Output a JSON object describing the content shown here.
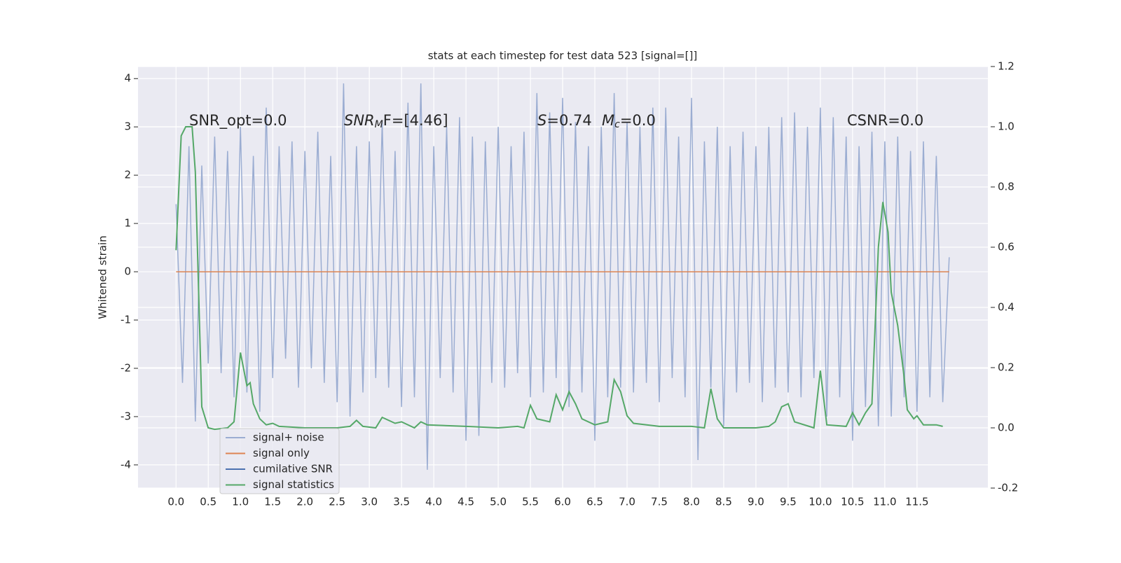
{
  "chart_data": {
    "type": "line",
    "title": "stats at each timestep for test data 523 [signal=[]]",
    "y_label": "Whitened strain",
    "annotations": [
      [
        "SNR_opt=0.0"
      ],
      [
        "SNR",
        "M",
        "F=[4.46]"
      ],
      [
        "S",
        "=0.74"
      ],
      [
        "M",
        "c",
        "=0.0"
      ],
      [
        "CSNR=0.0"
      ]
    ],
    "xlim": [
      -0.59,
      12.6
    ],
    "ylim": [
      -4.48,
      4.25
    ],
    "y2lim": [
      -0.2,
      1.2
    ],
    "xticks": [
      {
        "value": 0,
        "label": "0.0"
      },
      0.5,
      {
        "value": 1,
        "label": "1.0"
      },
      1.5,
      {
        "value": 2,
        "label": "2.0"
      },
      2.5,
      {
        "value": 3,
        "label": "3.0"
      },
      3.5,
      {
        "value": 4,
        "label": "4.0"
      },
      4.5,
      {
        "value": 5,
        "label": "5.0"
      },
      5.5,
      {
        "value": 6,
        "label": "6.0"
      },
      6.5,
      {
        "value": 7,
        "label": "7.0"
      },
      7.5,
      {
        "value": 8,
        "label": "8.0"
      },
      8.5,
      {
        "value": 9,
        "label": "9.0"
      },
      9.5,
      {
        "value": 10,
        "label": "10.0"
      },
      10.5,
      {
        "value": 11,
        "label": "11.0"
      },
      11.5
    ],
    "yticks": [
      -4,
      -3,
      -2,
      -1,
      0,
      1,
      2,
      3,
      4
    ],
    "y2ticks": [
      -0.2,
      {
        "value": 0,
        "label": "0.0"
      },
      0.2,
      0.4,
      0.6,
      0.8,
      {
        "value": 1,
        "label": "1.0"
      },
      1.2
    ],
    "grid": true,
    "legend": "lower left",
    "series": [
      {
        "name": "signal+ noise",
        "color": "#9badd2",
        "x": [
          0,
          0.1,
          0.2,
          0.3,
          0.4,
          0.5,
          0.6,
          0.7,
          0.8,
          0.9,
          1.0,
          1.1,
          1.2,
          1.3,
          1.4,
          1.5,
          1.6,
          1.7,
          1.8,
          1.9,
          2.0,
          2.1,
          2.2,
          2.3,
          2.4,
          2.5,
          2.6,
          2.7,
          2.8,
          2.9,
          3.0,
          3.1,
          3.2,
          3.3,
          3.4,
          3.5,
          3.6,
          3.7,
          3.8,
          3.9,
          4.0,
          4.1,
          4.2,
          4.3,
          4.4,
          4.5,
          4.6,
          4.7,
          4.8,
          4.9,
          5.0,
          5.1,
          5.2,
          5.3,
          5.4,
          5.5,
          5.6,
          5.7,
          5.8,
          5.9,
          6.0,
          6.1,
          6.2,
          6.3,
          6.4,
          6.5,
          6.6,
          6.7,
          6.8,
          6.9,
          7.0,
          7.1,
          7.2,
          7.3,
          7.4,
          7.5,
          7.6,
          7.7,
          7.8,
          7.9,
          8.0,
          8.1,
          8.2,
          8.3,
          8.4,
          8.5,
          8.6,
          8.7,
          8.8,
          8.9,
          9.0,
          9.1,
          9.2,
          9.3,
          9.4,
          9.5,
          9.6,
          9.7,
          9.8,
          9.9,
          10.0,
          10.1,
          10.2,
          10.3,
          10.4,
          10.5,
          10.6,
          10.7,
          10.8,
          10.9,
          11.0,
          11.1,
          11.2,
          11.3,
          11.4,
          11.5,
          11.6,
          11.7,
          11.8,
          11.9,
          12.0
        ],
        "values": [
          1.4,
          -2.3,
          2.6,
          -3.1,
          2.2,
          -1.9,
          2.8,
          -2.1,
          2.5,
          -2.6,
          3.0,
          -2.5,
          2.4,
          -2.9,
          3.4,
          -2.2,
          2.6,
          -1.8,
          2.7,
          -2.4,
          2.5,
          -2.0,
          2.9,
          -2.3,
          2.4,
          -2.7,
          3.9,
          -3.0,
          2.6,
          -2.5,
          2.7,
          -2.2,
          3.1,
          -2.4,
          2.5,
          -2.8,
          3.5,
          -2.6,
          3.9,
          -4.1,
          2.6,
          -2.2,
          3.0,
          -2.5,
          3.2,
          -3.5,
          2.8,
          -3.4,
          2.7,
          -2.3,
          3.0,
          -2.4,
          2.6,
          -2.1,
          2.9,
          -2.6,
          3.7,
          -2.5,
          3.3,
          -2.2,
          3.6,
          -2.8,
          3.1,
          -2.5,
          2.6,
          -3.5,
          3.0,
          -2.6,
          3.7,
          -2.4,
          3.1,
          -2.5,
          3.0,
          -2.3,
          3.4,
          -2.7,
          3.4,
          -2.2,
          2.8,
          -2.6,
          3.6,
          -3.9,
          2.7,
          -2.4,
          3.0,
          -3.2,
          2.6,
          -2.5,
          2.9,
          -2.3,
          2.6,
          -2.7,
          3.0,
          -2.4,
          3.2,
          -2.5,
          3.3,
          -2.6,
          3.0,
          -2.2,
          3.4,
          -3.0,
          3.2,
          -2.6,
          2.8,
          -3.5,
          2.6,
          -2.8,
          2.9,
          -3.2,
          2.7,
          -3.0,
          2.8,
          -2.6,
          2.5,
          -2.9,
          2.7,
          -2.6,
          2.4,
          -2.7,
          0.3
        ]
      },
      {
        "name": "signal only",
        "color": "#dd8452",
        "x": [
          0,
          12.0
        ],
        "values": [
          0,
          0
        ]
      },
      {
        "name": "cumilative SNR",
        "color": "#4c72b0",
        "x": [],
        "values": []
      },
      {
        "name": "signal statistics",
        "color": "#55a868",
        "axis": "y2",
        "x": [
          0,
          0.08,
          0.15,
          0.25,
          0.3,
          0.4,
          0.5,
          0.6,
          0.8,
          0.9,
          1.0,
          1.1,
          1.15,
          1.2,
          1.3,
          1.4,
          1.5,
          1.6,
          2.0,
          2.5,
          2.7,
          2.8,
          2.9,
          3.1,
          3.2,
          3.4,
          3.5,
          3.7,
          3.8,
          3.9,
          4.5,
          5.0,
          5.3,
          5.4,
          5.5,
          5.6,
          5.8,
          5.9,
          6.0,
          6.1,
          6.2,
          6.3,
          6.5,
          6.7,
          6.8,
          6.9,
          7.0,
          7.1,
          7.5,
          8.0,
          8.2,
          8.3,
          8.4,
          8.5,
          9.0,
          9.2,
          9.3,
          9.4,
          9.5,
          9.6,
          9.9,
          10.0,
          10.1,
          10.4,
          10.5,
          10.6,
          10.7,
          10.8,
          10.9,
          10.97,
          11.05,
          11.1,
          11.2,
          11.3,
          11.35,
          11.45,
          11.5,
          11.6,
          11.8,
          11.9
        ],
        "values": [
          0.59,
          0.97,
          1.0,
          1.0,
          0.85,
          0.07,
          0.0,
          -0.005,
          0.0,
          0.02,
          0.25,
          0.14,
          0.15,
          0.08,
          0.03,
          0.01,
          0.015,
          0.005,
          0.0,
          0.0,
          0.005,
          0.025,
          0.005,
          0.0,
          0.035,
          0.015,
          0.02,
          0.0,
          0.02,
          0.01,
          0.005,
          0.0,
          0.005,
          0.0,
          0.075,
          0.03,
          0.02,
          0.11,
          0.06,
          0.12,
          0.08,
          0.03,
          0.01,
          0.02,
          0.16,
          0.12,
          0.04,
          0.015,
          0.005,
          0.005,
          0.0,
          0.13,
          0.03,
          0.0,
          0.0,
          0.005,
          0.02,
          0.07,
          0.08,
          0.02,
          0.0,
          0.19,
          0.01,
          0.005,
          0.05,
          0.01,
          0.05,
          0.08,
          0.6,
          0.75,
          0.65,
          0.45,
          0.34,
          0.17,
          0.06,
          0.03,
          0.04,
          0.01,
          0.01,
          0.005
        ]
      }
    ]
  }
}
